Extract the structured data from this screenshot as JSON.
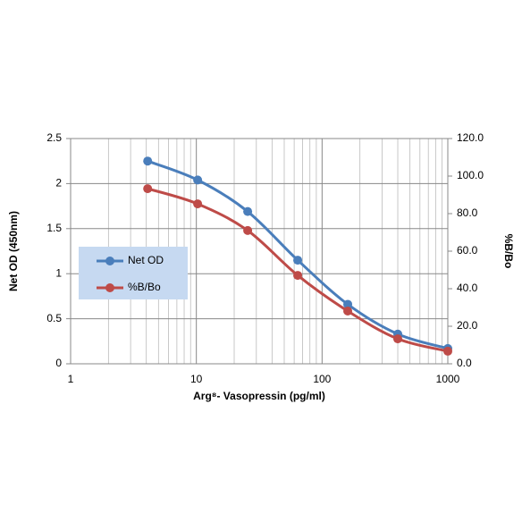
{
  "chart_data": {
    "type": "line",
    "x": [
      4.1,
      10.24,
      25.6,
      64,
      160,
      400,
      1000
    ],
    "xlabel": "Arg⁸- Vasopressin (pg/ml)",
    "ylabel": "Net OD (450nm)",
    "y2label": "%B/Bo",
    "xlog": true,
    "xlim": [
      1,
      1000
    ],
    "xticks": [
      1,
      10,
      100,
      1000
    ],
    "ylim": [
      0,
      2.5
    ],
    "yticks": [
      0,
      0.5,
      1,
      1.5,
      2,
      2.5
    ],
    "y2lim": [
      0,
      120
    ],
    "y2ticks": [
      {
        "value": 0,
        "label": "0.0"
      },
      {
        "value": 20,
        "label": "20.0"
      },
      {
        "value": 40,
        "label": "40.0"
      },
      {
        "value": 60,
        "label": "60.0"
      },
      {
        "value": 80,
        "label": "80.0"
      },
      {
        "value": 100,
        "label": "100.0"
      },
      {
        "value": 120,
        "label": "120.0"
      }
    ],
    "grid": true,
    "legend": "left",
    "series": [
      {
        "name": "Net OD",
        "color": "#4a7ebb",
        "values": [
          2.25,
          2.04,
          1.69,
          1.15,
          0.66,
          0.33,
          0.17
        ]
      },
      {
        "name": "%B/Bo",
        "color": "#be4b48",
        "axis": "y2",
        "values": [
          93.3,
          85.2,
          71,
          47.1,
          28.1,
          13.3,
          6.7
        ]
      }
    ]
  }
}
